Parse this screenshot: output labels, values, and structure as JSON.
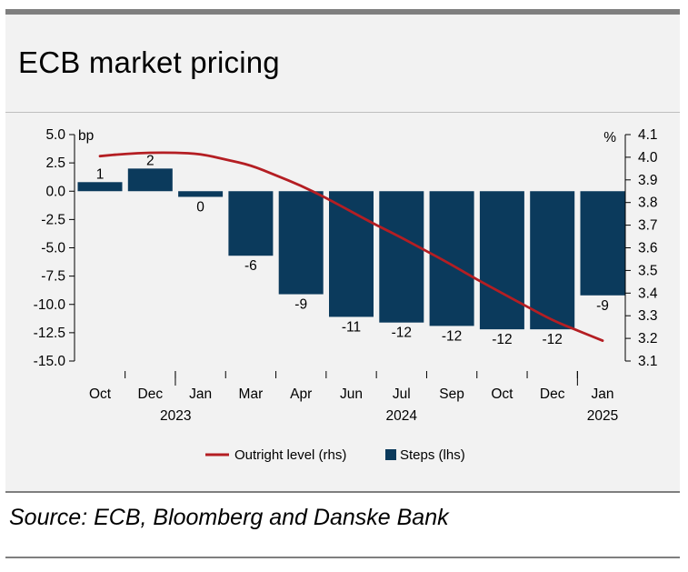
{
  "title": "ECB market pricing",
  "source": "Source: ECB, Bloomberg and Danske Bank",
  "colors": {
    "bar": "#0b3a5c",
    "line": "#b41e23",
    "band": "#f2f2f2"
  },
  "chart_data": {
    "type": "bar",
    "categories": [
      "Oct",
      "Dec",
      "Jan",
      "Mar",
      "Apr",
      "Jun",
      "Jul",
      "Sep",
      "Oct",
      "Dec",
      "Jan"
    ],
    "year_labels": [
      {
        "label": "2023",
        "category_index": 1
      },
      {
        "label": "2024",
        "category_index": 6
      },
      {
        "label": "2025",
        "category_index": 10
      }
    ],
    "left_axis": {
      "unit": "bp",
      "ylim": [
        -15,
        5
      ],
      "ticks": [
        "5.0",
        "2.5",
        "0.0",
        "-2.5",
        "-5.0",
        "-7.5",
        "-10.0",
        "-12.5",
        "-15.0"
      ]
    },
    "right_axis": {
      "unit": "%",
      "ylim": [
        3.1,
        4.1
      ],
      "ticks": [
        "4.1",
        "4.0",
        "3.9",
        "3.8",
        "3.7",
        "3.6",
        "3.5",
        "3.4",
        "3.3",
        "3.2",
        "3.1"
      ]
    },
    "series": [
      {
        "name": "Steps (lhs)",
        "type": "bar",
        "axis": "left",
        "values": [
          0.8,
          2.0,
          -0.5,
          -5.7,
          -9.1,
          -11.1,
          -11.6,
          -11.9,
          -12.2,
          -12.2,
          -9.2
        ],
        "data_labels": [
          "1",
          "2",
          "0",
          "-6",
          "-9",
          "-11",
          "-12",
          "-12",
          "-12",
          "-12",
          "-9"
        ]
      },
      {
        "name": "Outright level (rhs)",
        "type": "line",
        "axis": "right",
        "x": [
          0,
          0.5,
          1,
          1.5,
          2,
          2.5,
          3,
          3.5,
          4,
          4.5,
          5,
          5.5,
          6,
          6.5,
          7,
          7.5,
          8,
          8.5,
          9,
          9.5,
          10
        ],
        "values": [
          4.005,
          4.015,
          4.02,
          4.02,
          4.015,
          3.99,
          3.965,
          3.92,
          3.875,
          3.82,
          3.76,
          3.7,
          3.645,
          3.585,
          3.525,
          3.46,
          3.4,
          3.34,
          3.28,
          3.235,
          3.19
        ]
      }
    ],
    "legend": {
      "position": "bottom",
      "items": [
        "Outright level (rhs)",
        "Steps (lhs)"
      ]
    }
  }
}
